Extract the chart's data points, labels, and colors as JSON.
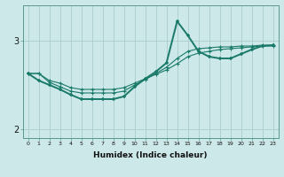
{
  "title": "",
  "xlabel": "Humidex (Indice chaleur)",
  "ylabel": "",
  "bg_color": "#cce8e8",
  "grid_color": "#aacccc",
  "line_color": "#1a7a6a",
  "x_ticks": [
    0,
    1,
    2,
    3,
    4,
    5,
    6,
    7,
    8,
    9,
    10,
    11,
    12,
    13,
    14,
    15,
    16,
    17,
    18,
    19,
    20,
    21,
    22,
    23
  ],
  "ylim": [
    1.9,
    3.4
  ],
  "yticks": [
    2.0,
    3.0
  ],
  "line1_x": [
    0,
    1,
    2,
    3,
    4,
    5,
    6,
    7,
    8,
    9,
    10,
    11,
    12,
    13,
    14,
    15,
    16,
    17,
    18,
    19,
    20,
    21,
    22,
    23
  ],
  "line1_y": [
    2.63,
    2.63,
    2.55,
    2.52,
    2.47,
    2.45,
    2.45,
    2.45,
    2.45,
    2.47,
    2.52,
    2.57,
    2.62,
    2.67,
    2.74,
    2.82,
    2.86,
    2.88,
    2.9,
    2.91,
    2.92,
    2.93,
    2.94,
    2.94
  ],
  "line2_x": [
    0,
    1,
    2,
    3,
    4,
    5,
    6,
    7,
    8,
    9,
    10,
    11,
    12,
    13,
    14,
    15,
    16,
    17,
    18,
    19,
    20,
    21,
    22,
    23
  ],
  "line2_y": [
    2.63,
    2.63,
    2.53,
    2.48,
    2.43,
    2.41,
    2.41,
    2.41,
    2.41,
    2.43,
    2.5,
    2.56,
    2.63,
    2.7,
    2.8,
    2.88,
    2.91,
    2.92,
    2.93,
    2.93,
    2.94,
    2.94,
    2.95,
    2.95
  ],
  "line3_x": [
    0,
    1,
    2,
    3,
    4,
    5,
    6,
    7,
    8,
    9,
    10,
    11,
    12,
    13,
    14,
    15,
    16,
    17,
    18,
    19,
    20,
    21,
    22,
    23
  ],
  "line3_y": [
    2.63,
    2.55,
    2.5,
    2.45,
    2.39,
    2.34,
    2.34,
    2.34,
    2.34,
    2.37,
    2.48,
    2.57,
    2.65,
    2.75,
    3.22,
    3.06,
    2.88,
    2.82,
    2.8,
    2.8,
    2.85,
    2.9,
    2.94,
    2.95
  ]
}
